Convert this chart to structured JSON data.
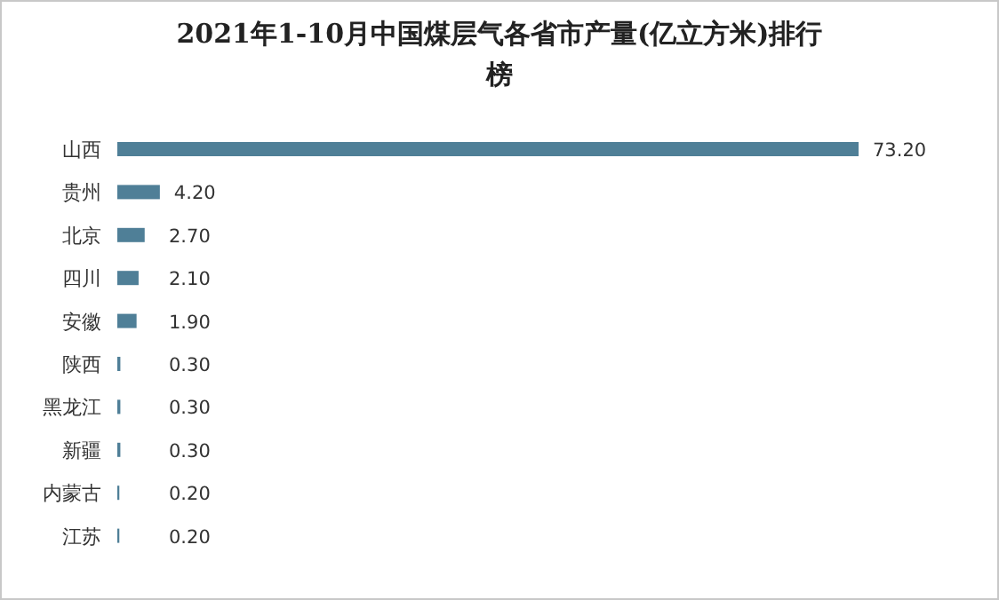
{
  "chart_data": {
    "type": "bar",
    "orientation": "horizontal",
    "title": "2021年1-10月中国煤层气各省市产量(亿立方米)排行榜",
    "categories": [
      "山西",
      "贵州",
      "北京",
      "四川",
      "安徽",
      "陕西",
      "黑龙江",
      "新疆",
      "内蒙古",
      "江苏"
    ],
    "values": [
      73.2,
      4.2,
      2.7,
      2.1,
      1.9,
      0.3,
      0.3,
      0.3,
      0.2,
      0.2
    ],
    "value_labels": [
      "73.20",
      "4.20",
      "2.70",
      "2.10",
      "1.90",
      "0.30",
      "0.30",
      "0.30",
      "0.20",
      "0.20"
    ],
    "color": "#4f7f97"
  }
}
